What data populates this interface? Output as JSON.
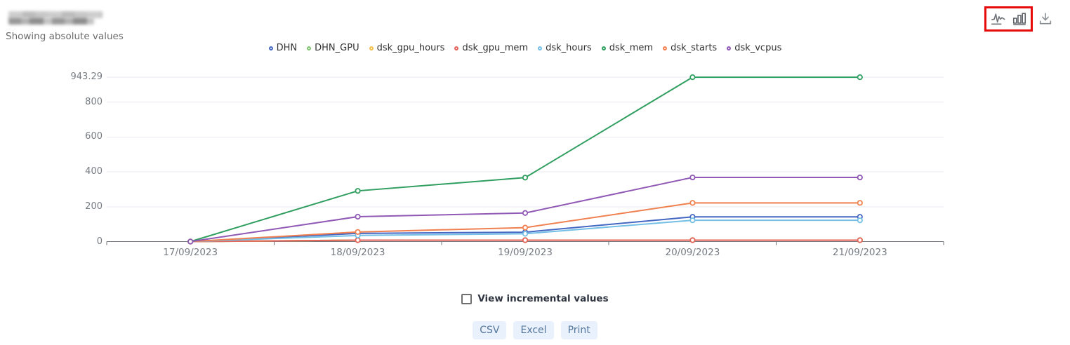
{
  "header": {
    "subtitle": "Showing absolute values",
    "title_redacted": true
  },
  "toolbar": {
    "icons": [
      "line-chart-icon",
      "bar-chart-icon",
      "download-icon"
    ],
    "highlight_box_color": "#e80b0b"
  },
  "chart_data": {
    "type": "line",
    "x": [
      "17/09/2023",
      "18/09/2023",
      "19/09/2023",
      "20/09/2023",
      "21/09/2023"
    ],
    "series": [
      {
        "name": "DHN",
        "color": "#4467c4",
        "values": [
          0,
          47,
          54,
          142,
          142
        ]
      },
      {
        "name": "DHN_GPU",
        "color": "#7fc56f",
        "values": [
          0,
          8,
          8,
          8,
          8
        ]
      },
      {
        "name": "dsk_gpu_hours",
        "color": "#f2c04a",
        "values": [
          0,
          8,
          8,
          8,
          8
        ]
      },
      {
        "name": "dsk_gpu_mem",
        "color": "#e4635a",
        "values": [
          0,
          8,
          8,
          8,
          8
        ]
      },
      {
        "name": "dsk_hours",
        "color": "#74bfe6",
        "values": [
          0,
          35,
          45,
          122,
          122
        ]
      },
      {
        "name": "dsk_mem",
        "color": "#2f9e5f",
        "values": [
          0,
          291,
          367,
          943.29,
          943.29
        ]
      },
      {
        "name": "dsk_starts",
        "color": "#f08050",
        "values": [
          0,
          55,
          80,
          222,
          222
        ]
      },
      {
        "name": "dsk_vcpus",
        "color": "#9059b5",
        "values": [
          0,
          143,
          164,
          368,
          368
        ]
      }
    ],
    "yticks": [
      0,
      200,
      400,
      600,
      800,
      943.29
    ],
    "ylim": [
      0,
      943.29
    ],
    "title": "",
    "xlabel": "",
    "ylabel": "",
    "legend_position": "top",
    "grid": "horizontal-only"
  },
  "controls": {
    "incremental_checkbox_label": "View incremental values",
    "incremental_checked": false,
    "export_buttons": [
      "CSV",
      "Excel",
      "Print"
    ]
  }
}
